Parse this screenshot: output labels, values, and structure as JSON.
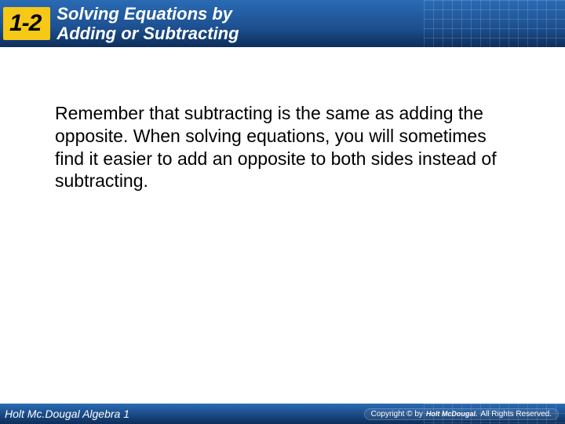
{
  "header": {
    "section_number": "1-2",
    "title_line1": "Solving Equations by",
    "title_line2": "Adding or Subtracting"
  },
  "content": {
    "body_text": "Remember that subtracting is the same as adding the opposite. When solving equations, you will sometimes find it easier to add an opposite to both sides instead of subtracting."
  },
  "footer": {
    "left_text": "Holt Mc.Dougal Algebra 1",
    "copyright_prefix": "Copyright © by",
    "publisher": "Holt McDougal.",
    "rights": "All Rights Reserved."
  },
  "colors": {
    "header_gradient_top": "#2a6bb5",
    "header_gradient_bottom": "#0d2e5a",
    "badge_bg": "#f6c817",
    "text_body": "#000000",
    "text_header": "#ffffff",
    "page_bg": "#ffffff"
  }
}
